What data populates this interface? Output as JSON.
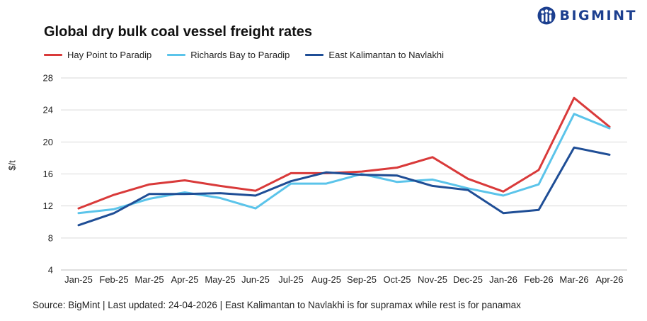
{
  "brand": {
    "name": "BIGMINT",
    "logo_icon": "bigmint-logo-icon"
  },
  "chart_data": {
    "type": "line",
    "title": "Global dry bulk coal vessel freight rates",
    "ylabel": "$/t",
    "xlabel": "",
    "ylim": [
      4,
      28
    ],
    "yticks": [
      4,
      8,
      12,
      16,
      20,
      24,
      28
    ],
    "grid": true,
    "legend_position": "top-left",
    "categories": [
      "Jan-25",
      "Feb-25",
      "Mar-25",
      "Apr-25",
      "May-25",
      "Jun-25",
      "Jul-25",
      "Aug-25",
      "Sep-25",
      "Oct-25",
      "Nov-25",
      "Dec-25",
      "Jan-26",
      "Feb-26",
      "Mar-26",
      "Apr-26"
    ],
    "series": [
      {
        "name": "Hay Point to Paradip",
        "color": "#d93a3a",
        "values": [
          11.7,
          13.4,
          14.7,
          15.2,
          14.5,
          13.9,
          16.1,
          16.1,
          16.3,
          16.8,
          18.1,
          15.4,
          13.8,
          16.5,
          25.5,
          21.9
        ]
      },
      {
        "name": "Richards Bay to Paradip",
        "color": "#5bc4ea",
        "values": [
          11.1,
          11.6,
          12.9,
          13.7,
          13.0,
          11.7,
          14.8,
          14.8,
          16.0,
          15.0,
          15.3,
          14.2,
          13.3,
          14.7,
          23.5,
          21.7
        ]
      },
      {
        "name": "East Kalimantan to Navlakhi",
        "color": "#1f4e96",
        "values": [
          9.6,
          11.1,
          13.5,
          13.5,
          13.6,
          13.3,
          15.1,
          16.2,
          15.9,
          15.8,
          14.5,
          14.0,
          11.1,
          11.5,
          19.3,
          18.4
        ]
      }
    ]
  },
  "footer": {
    "source": "Source: BigMint | Last updated: 24-04-2026 | East Kalimantan to Navlakhi is for supramax while rest is for panamax"
  }
}
